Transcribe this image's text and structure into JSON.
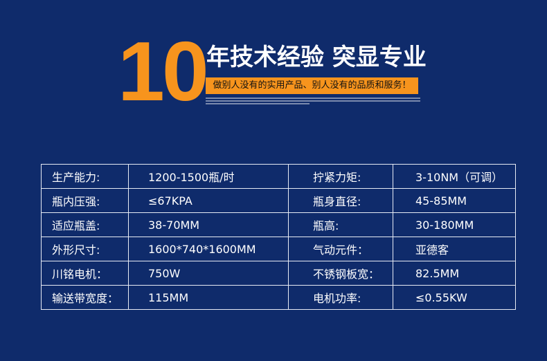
{
  "header": {
    "big_number": "10",
    "headline": "年技术经验 突显专业",
    "banner": "做别人没有的实用产品、别人没有的品质和服务！"
  },
  "colors": {
    "background": "#0f2b6b",
    "accent": "#f7941d"
  },
  "specs": [
    {
      "label1": "生产能力:",
      "value1": "1200-1500瓶/时",
      "label2": "拧紧力矩:",
      "value2": "3-10NM（可调）"
    },
    {
      "label1": "瓶内压强:",
      "value1": "≤67KPA",
      "label2": "瓶身直径:",
      "value2": "45-85MM"
    },
    {
      "label1": "适应瓶盖:",
      "value1": "38-70MM",
      "label2": "瓶高:",
      "value2": "30-180MM"
    },
    {
      "label1": "外形尺寸:",
      "value1": "1600*740*1600MM",
      "label2": "气动元件：",
      "value2": "亚德客"
    },
    {
      "label1": "川铭电机：",
      "value1": "750W",
      "label2": "不锈钢板宽：",
      "value2": "82.5MM"
    },
    {
      "label1": "输送带宽度：",
      "value1": "115MM",
      "label2": "电机功率:",
      "value2": "≤0.55KW"
    }
  ]
}
